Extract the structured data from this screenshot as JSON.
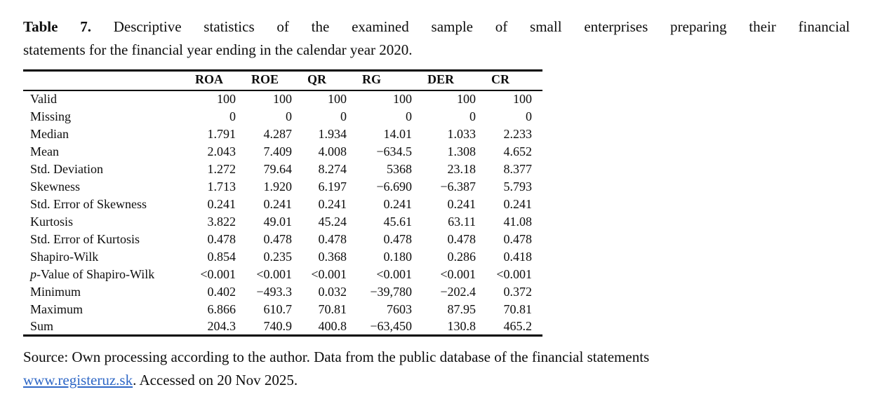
{
  "caption": {
    "label": "Table 7.",
    "line1_rest": "Descriptive statistics of the examined sample of small enterprises preparing their financial",
    "line2": "statements for the financial year ending in the calendar year 2020."
  },
  "table": {
    "columns": [
      "ROA",
      "ROE",
      "QR",
      "RG",
      "DER",
      "CR"
    ],
    "rows": [
      {
        "label": "Valid",
        "values": [
          "100",
          "100",
          "100",
          "100",
          "100",
          "100"
        ]
      },
      {
        "label": "Missing",
        "values": [
          "0",
          "0",
          "0",
          "0",
          "0",
          "0"
        ]
      },
      {
        "label": "Median",
        "values": [
          "1.791",
          "4.287",
          "1.934",
          "14.01",
          "1.033",
          "2.233"
        ]
      },
      {
        "label": "Mean",
        "values": [
          "2.043",
          "7.409",
          "4.008",
          "−634.5",
          "1.308",
          "4.652"
        ]
      },
      {
        "label": "Std. Deviation",
        "values": [
          "1.272",
          "79.64",
          "8.274",
          "5368",
          "23.18",
          "8.377"
        ]
      },
      {
        "label": "Skewness",
        "values": [
          "1.713",
          "1.920",
          "6.197",
          "−6.690",
          "−6.387",
          "5.793"
        ]
      },
      {
        "label": "Std. Error of Skewness",
        "values": [
          "0.241",
          "0.241",
          "0.241",
          "0.241",
          "0.241",
          "0.241"
        ]
      },
      {
        "label": "Kurtosis",
        "values": [
          "3.822",
          "49.01",
          "45.24",
          "45.61",
          "63.11",
          "41.08"
        ]
      },
      {
        "label": "Std. Error of Kurtosis",
        "values": [
          "0.478",
          "0.478",
          "0.478",
          "0.478",
          "0.478",
          "0.478"
        ]
      },
      {
        "label": "Shapiro-Wilk",
        "values": [
          "0.854",
          "0.235",
          "0.368",
          "0.180",
          "0.286",
          "0.418"
        ]
      },
      {
        "label": "p-Value of Shapiro-Wilk",
        "italic_first": true,
        "values": [
          "<0.001",
          "<0.001",
          "<0.001",
          "<0.001",
          "<0.001",
          "<0.001"
        ]
      },
      {
        "label": "Minimum",
        "values": [
          "0.402",
          "−493.3",
          "0.032",
          "−39,780",
          "−202.4",
          "0.372"
        ]
      },
      {
        "label": "Maximum",
        "values": [
          "6.866",
          "610.7",
          "70.81",
          "7603",
          "87.95",
          "70.81"
        ]
      },
      {
        "label": "Sum",
        "values": [
          "204.3",
          "740.9",
          "400.8",
          "−63,450",
          "130.8",
          "465.2"
        ]
      }
    ]
  },
  "source": {
    "line1": "Source: Own processing according to the author. Data from the public database of the financial statements",
    "link": "www.registeruz.sk",
    "line2_rest": ". Accessed on 20 Nov 2025."
  },
  "colors": {
    "text_black": "#0d0d0d",
    "rule_black": "#000000",
    "link_blue": "#2e67c6"
  }
}
